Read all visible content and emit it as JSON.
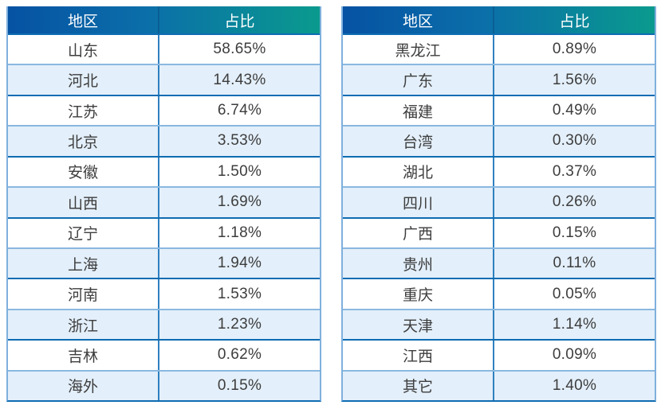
{
  "page": {
    "background": "#ffffff",
    "description_colors": {
      "header_gradient_start": "#0652a3",
      "header_gradient_end": "#0a9a8e",
      "header_text": "#ffffff",
      "body_text": "#3d3d3d",
      "row_shaded_bg": "#e3effa",
      "row_plain_bg": "#ffffff",
      "border_dark": "#0f6cb2",
      "border_light": "#8ab8e0",
      "outer_border": "#7fb0dd",
      "column_divider": "#2f80c0"
    }
  },
  "chart_data": [
    {
      "type": "table",
      "columns": [
        "地区",
        "占比"
      ],
      "rows": [
        [
          "山东",
          "58.65%"
        ],
        [
          "河北",
          "14.43%"
        ],
        [
          "江苏",
          "6.74%"
        ],
        [
          "北京",
          "3.53%"
        ],
        [
          "安徽",
          "1.50%"
        ],
        [
          "山西",
          "1.69%"
        ],
        [
          "辽宁",
          "1.18%"
        ],
        [
          "上海",
          "1.94%"
        ],
        [
          "河南",
          "1.53%"
        ],
        [
          "浙江",
          "1.23%"
        ],
        [
          "吉林",
          "0.62%"
        ],
        [
          "海外",
          "0.15%"
        ]
      ]
    },
    {
      "type": "table",
      "columns": [
        "地区",
        "占比"
      ],
      "rows": [
        [
          "黑龙江",
          "0.89%"
        ],
        [
          "广东",
          "1.56%"
        ],
        [
          "福建",
          "0.49%"
        ],
        [
          "台湾",
          "0.30%"
        ],
        [
          "湖北",
          "0.37%"
        ],
        [
          "四川",
          "0.26%"
        ],
        [
          "广西",
          "0.15%"
        ],
        [
          "贵州",
          "0.11%"
        ],
        [
          "重庆",
          "0.05%"
        ],
        [
          "天津",
          "1.14%"
        ],
        [
          "江西",
          "0.09%"
        ],
        [
          "其它",
          "1.40%"
        ]
      ]
    }
  ]
}
